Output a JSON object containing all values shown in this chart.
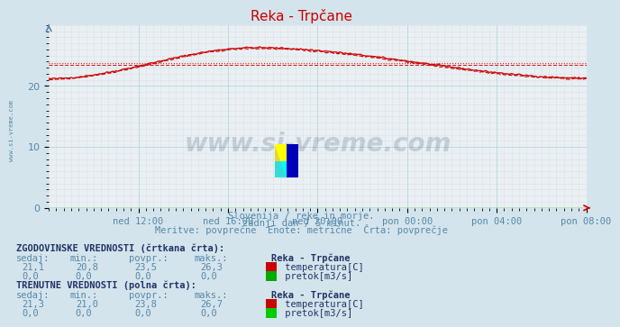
{
  "title": "Reka - Trpčane",
  "bg_color": "#d4e4ec",
  "plot_bg_color": "#e8f0f4",
  "line_color": "#cc0000",
  "axis_color": "#5588aa",
  "text_color": "#5588aa",
  "bold_text_color": "#223366",
  "watermark_color": "#1a3a5c",
  "subtitle1": "Slovenija / reke in morje.",
  "subtitle2": "zadnji dan / 5 minut.",
  "subtitle3": "Meritve: povprečne  Enote: metrične  Črta: povprečje",
  "xlabel_ticks": [
    "ned 12:00",
    "ned 16:00",
    "ned 20:00",
    "pon 00:00",
    "pon 04:00",
    "pon 08:00"
  ],
  "yticks": [
    0,
    10,
    20
  ],
  "ylim": [
    0,
    30
  ],
  "xlim": [
    0,
    288
  ],
  "avg_hist": 23.5,
  "avg_curr": 23.8,
  "temp_start": 21.2,
  "temp_peak": 26.3,
  "temp_peak_x": 110,
  "temp_end": 21.3,
  "hist_label": "ZGODOVINSKE VREDNOSTI (črtkana črta):",
  "curr_label": "TRENUTNE VREDNOSTI (polna črta):",
  "col_headers": [
    "sedaj:",
    "min.:",
    "povpr.:",
    "maks.:"
  ],
  "station": "Reka - Trpčane",
  "hist_temp_vals": [
    "21,1",
    "20,8",
    "23,5",
    "26,3"
  ],
  "hist_flow_vals": [
    "0,0",
    "0,0",
    "0,0",
    "0,0"
  ],
  "curr_temp_vals": [
    "21,3",
    "21,0",
    "23,8",
    "26,7"
  ],
  "curr_flow_vals": [
    "0,0",
    "0,0",
    "0,0",
    "0,0"
  ],
  "temp_label": "temperatura[C]",
  "flow_label": "pretok[m3/s]",
  "temp_color": "#cc0000",
  "flow_color": "#00aa00",
  "side_text": "www.si-vreme.com"
}
